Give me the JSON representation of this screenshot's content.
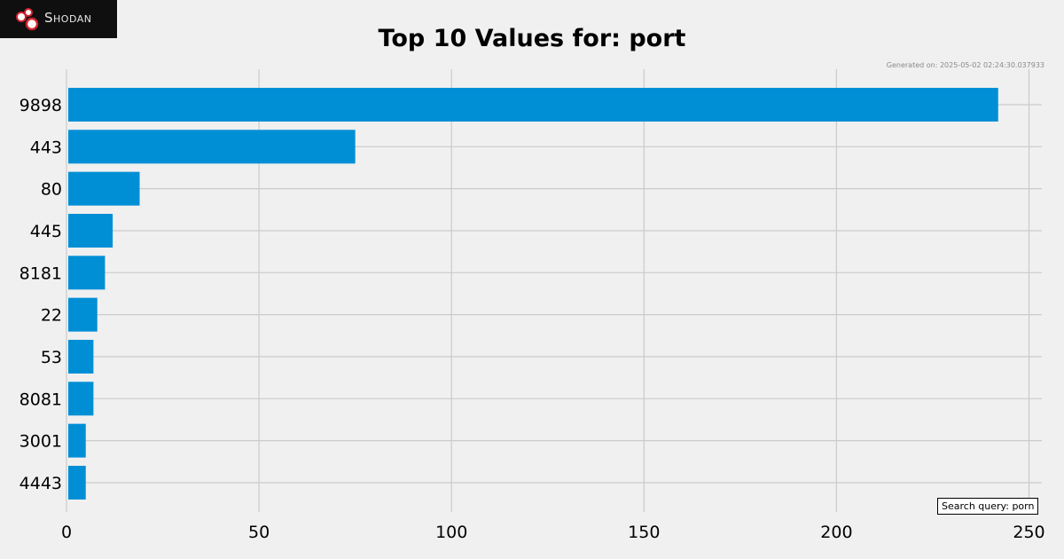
{
  "brand": {
    "name": "Shodan"
  },
  "generated": "Generated on: 2025-05-02 02:24:30.037933",
  "search_query": "Search query: porn",
  "colors": {
    "background": "#f0f0f0",
    "bar": "#008fd5",
    "grid": "#cbcbcb",
    "logo_bg": "#0f0f0f"
  },
  "chart_data": {
    "type": "bar",
    "orientation": "horizontal",
    "title": "Top 10 Values for: port",
    "xlabel": "",
    "ylabel": "",
    "categories": [
      "9898",
      "443",
      "80",
      "445",
      "8181",
      "22",
      "53",
      "8081",
      "3001",
      "4443"
    ],
    "values": [
      242,
      75,
      19,
      12,
      10,
      8,
      7,
      7,
      5,
      5
    ],
    "xlim": [
      0,
      255
    ],
    "xticks": [
      0,
      50,
      100,
      150,
      200,
      250
    ],
    "grid": true
  }
}
